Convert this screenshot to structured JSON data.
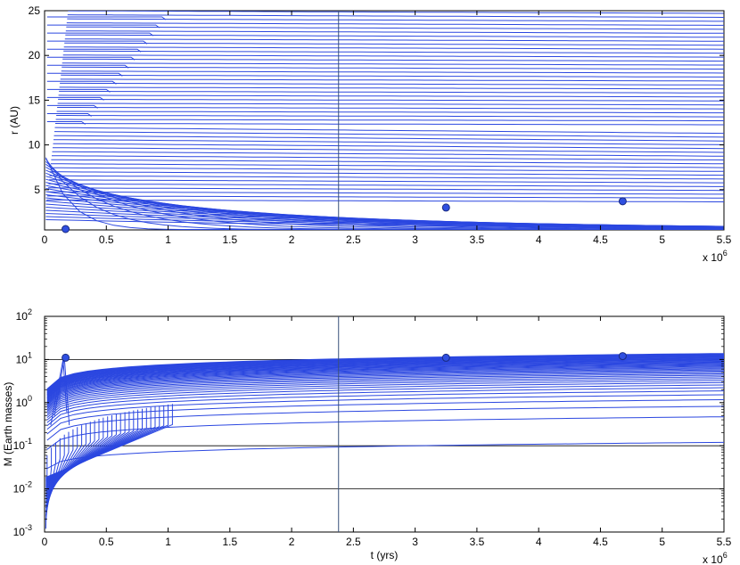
{
  "chart_data": [
    {
      "id": "top",
      "type": "line",
      "ylabel": "r (AU)",
      "xlabel": "",
      "x_multiplier": "x 10",
      "x_multiplier_exp": "6",
      "xlim": [
        0,
        5.5
      ],
      "ylim": [
        0.5,
        25
      ],
      "xticks": [
        0,
        0.5,
        1,
        1.5,
        2,
        2.5,
        3,
        3.5,
        4,
        4.5,
        5,
        5.5
      ],
      "xtick_labels": [
        "0",
        "0.5",
        "1",
        "1.5",
        "2",
        "2.5",
        "3",
        "3.5",
        "4",
        "4.5",
        "5",
        "5.5"
      ],
      "yticks": [
        5,
        10,
        15,
        20,
        25
      ],
      "ytick_labels": [
        "5",
        "10",
        "15",
        "20",
        "25"
      ],
      "vline_x": 2.38,
      "markers": [
        {
          "x": 0.17,
          "y": 0.6
        },
        {
          "x": 3.25,
          "y": 3.0
        },
        {
          "x": 4.68,
          "y": 3.7
        }
      ]
    },
    {
      "id": "bottom",
      "type": "line",
      "ylabel": "M (Earth masses)",
      "xlabel": "t (yrs)",
      "x_multiplier": "x 10",
      "x_multiplier_exp": "6",
      "xlim": [
        0,
        5.5
      ],
      "ylim": [
        0.001,
        100
      ],
      "yscale": "log",
      "xticks": [
        0,
        0.5,
        1,
        1.5,
        2,
        2.5,
        3,
        3.5,
        4,
        4.5,
        5,
        5.5
      ],
      "xtick_labels": [
        "0",
        "0.5",
        "1",
        "1.5",
        "2",
        "2.5",
        "3",
        "3.5",
        "4",
        "4.5",
        "5",
        "5.5"
      ],
      "yticks": [
        0.001,
        0.01,
        0.1,
        1,
        10,
        100
      ],
      "ytick_base": "10",
      "ytick_exps": [
        "-3",
        "-2",
        "-1",
        "0",
        "1",
        "2"
      ],
      "hgrid": [
        0.01,
        0.1,
        10
      ],
      "vline_x": 2.38,
      "markers": [
        {
          "x": 0.17,
          "y": 11
        },
        {
          "x": 3.25,
          "y": 11
        },
        {
          "x": 4.68,
          "y": 12
        }
      ]
    }
  ]
}
